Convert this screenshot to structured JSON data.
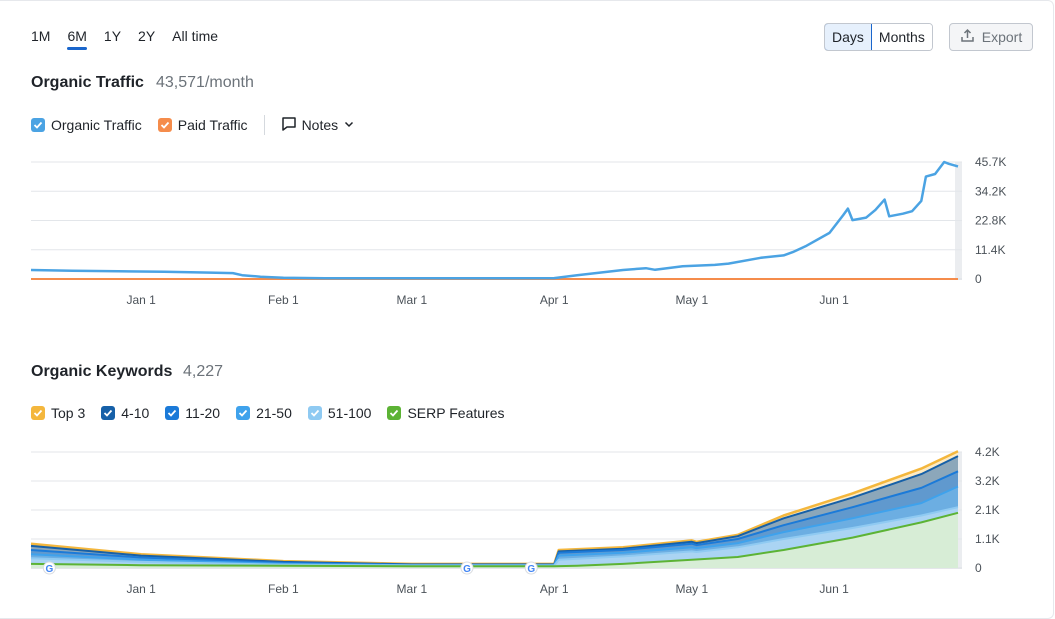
{
  "ranges": [
    "1M",
    "6M",
    "1Y",
    "2Y",
    "All time"
  ],
  "active_range": "6M",
  "view_toggle": {
    "days": "Days",
    "months": "Months",
    "active": "Days"
  },
  "export_label": "Export",
  "traffic": {
    "title": "Organic Traffic",
    "value": "43,571/month",
    "legend": {
      "organic": "Organic Traffic",
      "paid": "Paid Traffic",
      "notes": "Notes"
    }
  },
  "keywords": {
    "title": "Organic Keywords",
    "value": "4,227",
    "legend": [
      "Top 3",
      "4-10",
      "11-20",
      "21-50",
      "51-100",
      "SERP Features"
    ]
  },
  "colors": {
    "organic": "#4ba3e3",
    "paid": "#f58c4b",
    "top3": "#f4b73d",
    "k4_10": "#1660a8",
    "k11_20": "#1b7ad8",
    "k21_50": "#3fa2ec",
    "k51_100": "#8fcaf2",
    "serp": "#5cb335"
  },
  "chart_data": [
    {
      "type": "line",
      "x_ticks": [
        "Jan 1",
        "Feb 1",
        "Mar 1",
        "Apr 1",
        "May 1",
        "Jun 1"
      ],
      "y_ticks": [
        "45.7K",
        "34.2K",
        "22.8K",
        "11.4K",
        "0"
      ],
      "ylim": [
        0,
        45700
      ],
      "x_range_days": [
        -24,
        156
      ],
      "series": [
        {
          "name": "Organic Traffic",
          "points": [
            [
              -24,
              3500
            ],
            [
              -15,
              3200
            ],
            [
              -5,
              3000
            ],
            [
              5,
              2800
            ],
            [
              15,
              2500
            ],
            [
              20,
              2300
            ],
            [
              22,
              1500
            ],
            [
              26,
              900
            ],
            [
              31,
              500
            ],
            [
              40,
              300
            ],
            [
              59,
              300
            ],
            [
              70,
              300
            ],
            [
              81,
              300
            ],
            [
              90,
              350
            ],
            [
              95,
              1500
            ],
            [
              100,
              2500
            ],
            [
              105,
              3500
            ],
            [
              110,
              4200
            ],
            [
              112,
              3600
            ],
            [
              118,
              5000
            ],
            [
              125,
              5500
            ],
            [
              128,
              6000
            ],
            [
              135,
              8300
            ],
            [
              140,
              9200
            ],
            [
              142,
              10500
            ],
            [
              145,
              13000
            ],
            [
              150,
              18000
            ],
            [
              153,
              25000
            ],
            [
              154,
              27500
            ],
            [
              155,
              23000
            ],
            [
              158,
              24000
            ],
            [
              160,
              27000
            ],
            [
              162,
              31000
            ],
            [
              163,
              24500
            ],
            [
              166,
              25500
            ],
            [
              168,
              26500
            ],
            [
              170,
              30500
            ],
            [
              171,
              40000
            ],
            [
              173,
              41000
            ],
            [
              175,
              45700
            ],
            [
              176,
              45000
            ],
            [
              178,
              44000
            ]
          ]
        },
        {
          "name": "Paid Traffic",
          "points": [
            [
              -24,
              0
            ],
            [
              178,
              0
            ]
          ]
        }
      ]
    },
    {
      "type": "area",
      "x_ticks": [
        "Jan 1",
        "Feb 1",
        "Mar 1",
        "Apr 1",
        "May 1",
        "Jun 1"
      ],
      "y_ticks": [
        "4.2K",
        "3.2K",
        "2.1K",
        "1.1K",
        "0"
      ],
      "ylim": [
        0,
        4200
      ],
      "series": [
        {
          "name": "Top 3",
          "points": [
            [
              -24,
              880
            ],
            [
              0,
              500
            ],
            [
              31,
              250
            ],
            [
              59,
              150
            ],
            [
              81,
              150
            ],
            [
              90,
              150
            ],
            [
              91,
              650
            ],
            [
              105,
              750
            ],
            [
              120,
              1000
            ],
            [
              121,
              950
            ],
            [
              130,
              1200
            ],
            [
              140,
              1900
            ],
            [
              155,
              2700
            ],
            [
              170,
              3600
            ],
            [
              178,
              4227
            ]
          ]
        },
        {
          "name": "4-10",
          "points": [
            [
              -24,
              800
            ],
            [
              0,
              450
            ],
            [
              31,
              220
            ],
            [
              59,
              130
            ],
            [
              81,
              130
            ],
            [
              90,
              130
            ],
            [
              91,
              600
            ],
            [
              105,
              700
            ],
            [
              120,
              950
            ],
            [
              121,
              900
            ],
            [
              130,
              1150
            ],
            [
              140,
              1800
            ],
            [
              155,
              2550
            ],
            [
              170,
              3400
            ],
            [
              178,
              4050
            ]
          ]
        },
        {
          "name": "11-20",
          "points": [
            [
              -24,
              650
            ],
            [
              0,
              380
            ],
            [
              31,
              180
            ],
            [
              59,
              110
            ],
            [
              81,
              110
            ],
            [
              90,
              110
            ],
            [
              91,
              550
            ],
            [
              105,
              650
            ],
            [
              120,
              880
            ],
            [
              121,
              830
            ],
            [
              130,
              1050
            ],
            [
              140,
              1550
            ],
            [
              155,
              2200
            ],
            [
              170,
              2900
            ],
            [
              178,
              3500
            ]
          ]
        },
        {
          "name": "21-50",
          "points": [
            [
              -24,
              500
            ],
            [
              0,
              300
            ],
            [
              31,
              150
            ],
            [
              59,
              100
            ],
            [
              81,
              100
            ],
            [
              90,
              100
            ],
            [
              91,
              450
            ],
            [
              105,
              550
            ],
            [
              120,
              750
            ],
            [
              121,
              720
            ],
            [
              130,
              900
            ],
            [
              140,
              1300
            ],
            [
              155,
              1800
            ],
            [
              170,
              2350
            ],
            [
              178,
              2950
            ]
          ]
        },
        {
          "name": "51-100",
          "points": [
            [
              -24,
              350
            ],
            [
              0,
              220
            ],
            [
              31,
              120
            ],
            [
              59,
              90
            ],
            [
              81,
              90
            ],
            [
              90,
              90
            ],
            [
              91,
              300
            ],
            [
              105,
              420
            ],
            [
              120,
              600
            ],
            [
              121,
              580
            ],
            [
              130,
              750
            ],
            [
              140,
              1050
            ],
            [
              155,
              1450
            ],
            [
              170,
              1900
            ],
            [
              178,
              2200
            ]
          ]
        },
        {
          "name": "SERP Features",
          "points": [
            [
              -24,
              150
            ],
            [
              0,
              100
            ],
            [
              31,
              80
            ],
            [
              59,
              60
            ],
            [
              81,
              60
            ],
            [
              90,
              60
            ],
            [
              95,
              80
            ],
            [
              105,
              150
            ],
            [
              120,
              300
            ],
            [
              130,
              400
            ],
            [
              140,
              650
            ],
            [
              155,
              1100
            ],
            [
              170,
              1650
            ],
            [
              178,
              2000
            ]
          ]
        }
      ],
      "markers": [
        "G",
        "G",
        "G"
      ]
    }
  ]
}
